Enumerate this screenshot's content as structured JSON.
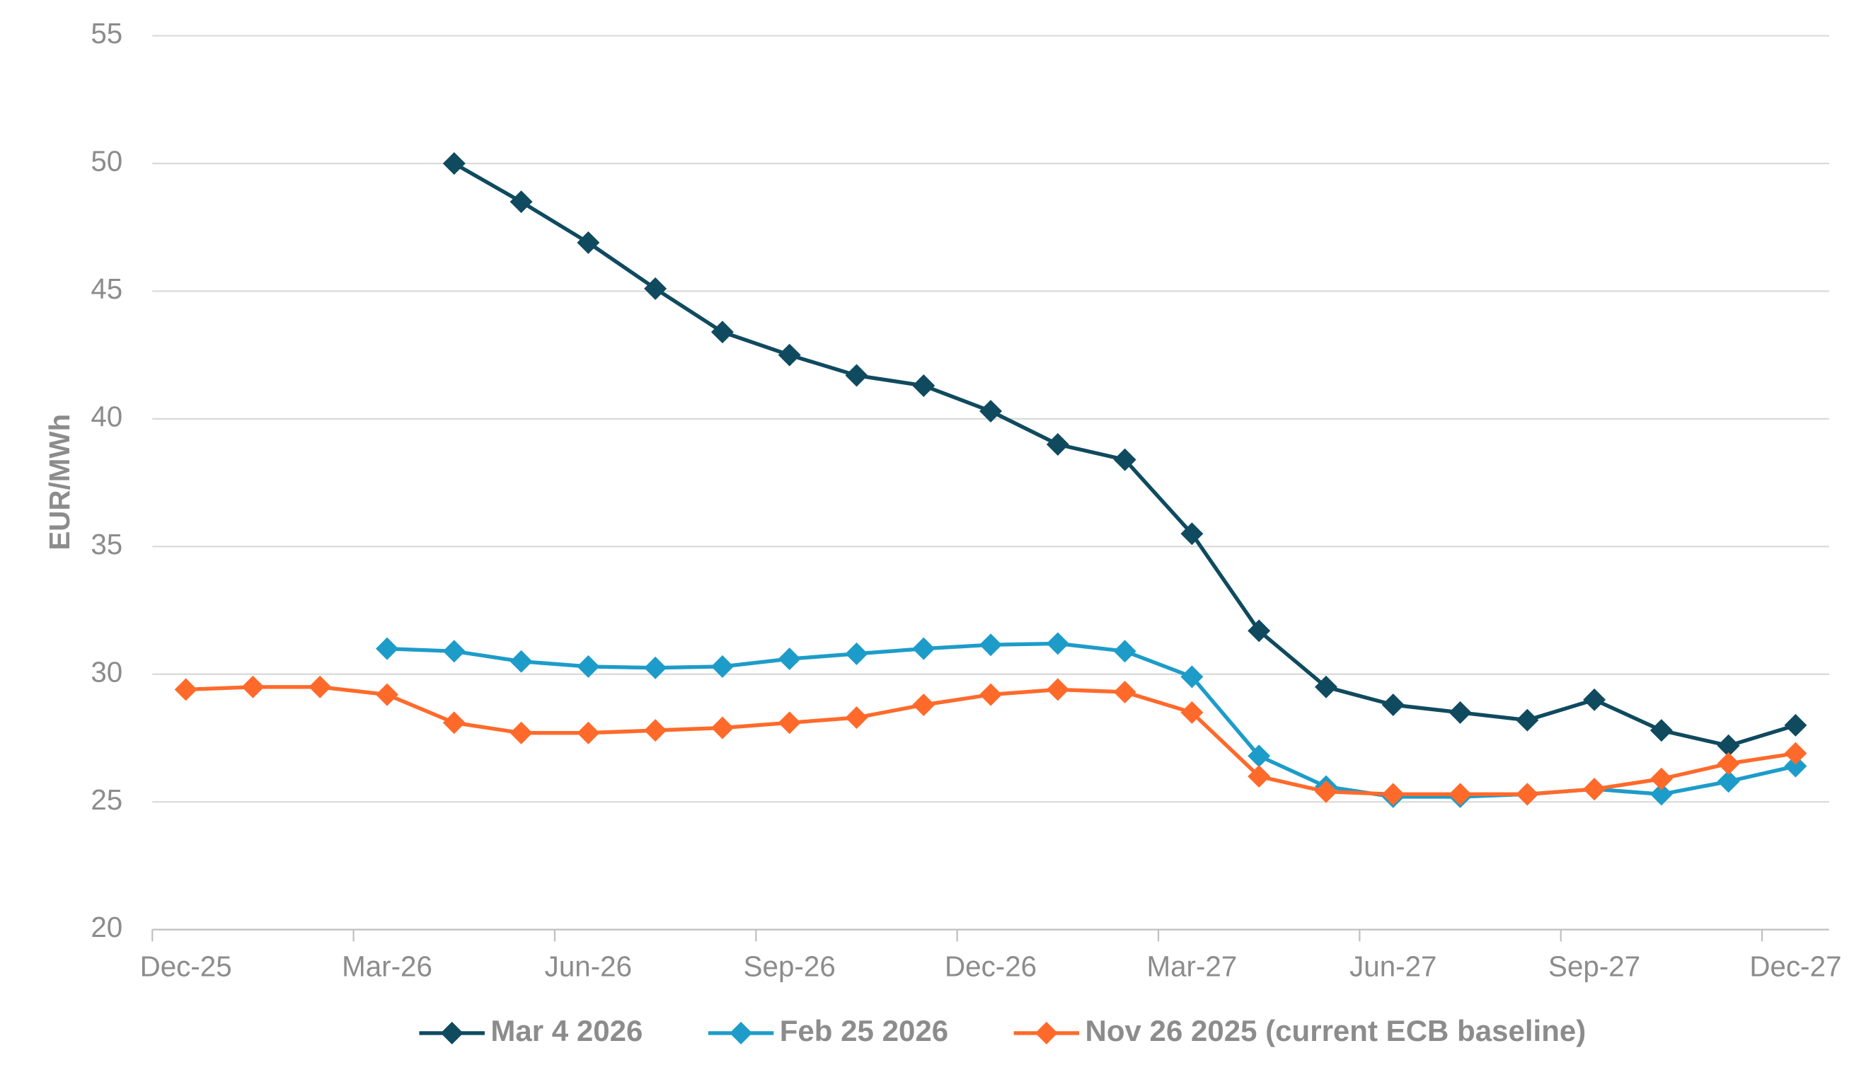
{
  "chart_data": {
    "type": "line",
    "y_label": "EUR/MWh",
    "categories": [
      "Dec-25",
      null,
      null,
      "Mar-26",
      null,
      null,
      "Jun-26",
      null,
      null,
      "Sep-26",
      null,
      null,
      "Dec-26",
      null,
      null,
      "Mar-27",
      null,
      null,
      "Jun-27",
      null,
      null,
      "Sep-27",
      null,
      null,
      "Dec-27"
    ],
    "ylim": [
      20,
      55
    ],
    "yticks": [
      20,
      25,
      30,
      35,
      40,
      45,
      50,
      55
    ],
    "grid": true,
    "legend": "bottom",
    "series": [
      {
        "name": "Mar 4 2026",
        "color": "#0f4a5f",
        "values": [
          null,
          null,
          null,
          null,
          50,
          48.5,
          46.9,
          45.1,
          43.4,
          42.5,
          41.7,
          41.3,
          40.3,
          39.0,
          38.4,
          35.5,
          31.7,
          29.5,
          28.8,
          28.5,
          28.2,
          29.0,
          27.8,
          27.2,
          28.0
        ]
      },
      {
        "name": "Feb 25 2026",
        "color": "#1d9cc9",
        "values": [
          null,
          null,
          null,
          31.0,
          30.9,
          30.5,
          30.3,
          30.25,
          30.3,
          30.6,
          30.8,
          31.0,
          31.15,
          31.2,
          30.9,
          29.9,
          26.8,
          25.6,
          25.2,
          25.2,
          25.3,
          25.5,
          25.3,
          25.8,
          26.4
        ]
      },
      {
        "name": "Nov 26 2025 (current ECB baseline)",
        "color": "#ff6a2b",
        "values": [
          29.4,
          29.5,
          29.5,
          29.2,
          28.1,
          27.7,
          27.7,
          27.8,
          27.9,
          28.1,
          28.3,
          28.8,
          29.2,
          29.4,
          29.3,
          28.5,
          26.0,
          25.4,
          25.3,
          25.3,
          25.3,
          25.5,
          25.9,
          26.5,
          26.9
        ]
      }
    ]
  }
}
